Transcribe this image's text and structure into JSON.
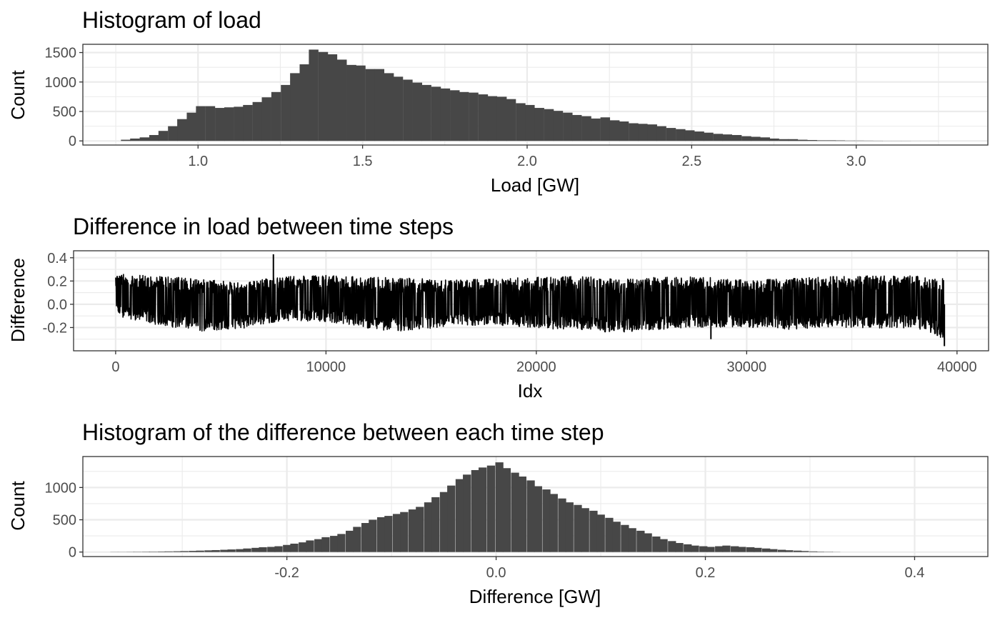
{
  "chart_data": [
    {
      "type": "bar",
      "title": "Histogram of load",
      "xlabel": "Load [GW]",
      "ylabel": "Count",
      "xlim": [
        0.65,
        3.4
      ],
      "ylim": [
        -70,
        1640
      ],
      "xticks": [
        "1.0",
        "1.5",
        "2.0",
        "2.5",
        "3.0"
      ],
      "xtick_values": [
        1.0,
        1.5,
        2.0,
        2.5,
        3.0
      ],
      "yticks": [
        "0",
        "500",
        "1000",
        "1500"
      ],
      "ytick_values": [
        0,
        500,
        1000,
        1500
      ],
      "grid": true,
      "bin_width": 0.0286,
      "bin_centers": [
        0.78,
        0.808,
        0.837,
        0.866,
        0.894,
        0.923,
        0.951,
        0.98,
        1.008,
        1.037,
        1.066,
        1.094,
        1.123,
        1.151,
        1.18,
        1.208,
        1.237,
        1.266,
        1.294,
        1.323,
        1.351,
        1.38,
        1.408,
        1.437,
        1.466,
        1.494,
        1.523,
        1.551,
        1.58,
        1.608,
        1.637,
        1.666,
        1.694,
        1.723,
        1.751,
        1.78,
        1.808,
        1.837,
        1.866,
        1.894,
        1.923,
        1.951,
        1.98,
        2.008,
        2.037,
        2.066,
        2.094,
        2.123,
        2.151,
        2.18,
        2.208,
        2.237,
        2.266,
        2.294,
        2.323,
        2.351,
        2.38,
        2.408,
        2.437,
        2.466,
        2.494,
        2.523,
        2.551,
        2.58,
        2.608,
        2.637,
        2.666,
        2.694,
        2.723,
        2.751,
        2.78,
        2.808,
        2.837,
        2.866,
        2.894,
        2.923,
        2.951,
        2.98,
        3.008,
        3.037,
        3.066,
        3.094,
        3.123,
        3.151,
        3.18,
        3.208,
        3.237
      ],
      "values": [
        20,
        40,
        60,
        100,
        170,
        250,
        370,
        480,
        590,
        590,
        560,
        570,
        580,
        610,
        660,
        740,
        830,
        950,
        1150,
        1300,
        1550,
        1510,
        1470,
        1380,
        1290,
        1280,
        1220,
        1220,
        1150,
        1090,
        1040,
        990,
        950,
        920,
        890,
        860,
        830,
        820,
        790,
        760,
        750,
        710,
        640,
        610,
        560,
        540,
        510,
        480,
        440,
        420,
        380,
        400,
        350,
        330,
        300,
        290,
        280,
        250,
        220,
        200,
        180,
        160,
        140,
        120,
        110,
        100,
        80,
        70,
        60,
        40,
        30,
        30,
        20,
        15,
        10,
        10,
        8,
        5,
        5,
        4,
        3,
        2,
        2,
        2,
        1,
        1,
        1
      ]
    },
    {
      "type": "line",
      "title": "Difference in load between time steps",
      "xlabel": "Idx",
      "ylabel": "Difference",
      "xlim": [
        -2000,
        41500
      ],
      "ylim": [
        -0.4,
        0.46
      ],
      "xticks": [
        "0",
        "10000",
        "20000",
        "30000",
        "40000"
      ],
      "xtick_values": [
        0,
        10000,
        20000,
        30000,
        40000
      ],
      "yticks": [
        "-0.2",
        "0.0",
        "0.2",
        "0.4"
      ],
      "ytick_values": [
        -0.2,
        0.0,
        0.2,
        0.4
      ],
      "grid": true,
      "n_points": 39400,
      "envelope_x": [
        0,
        2000,
        4000,
        6000,
        8000,
        10000,
        12000,
        14000,
        16000,
        18000,
        20000,
        22000,
        24000,
        26000,
        28000,
        30000,
        32000,
        34000,
        36000,
        38000,
        39400
      ],
      "envelope_upper": [
        0.28,
        0.27,
        0.24,
        0.21,
        0.26,
        0.27,
        0.26,
        0.25,
        0.23,
        0.24,
        0.26,
        0.27,
        0.24,
        0.26,
        0.26,
        0.23,
        0.25,
        0.27,
        0.27,
        0.27,
        0.25
      ],
      "envelope_lower": [
        -0.12,
        -0.2,
        -0.26,
        -0.23,
        -0.16,
        -0.17,
        -0.24,
        -0.26,
        -0.22,
        -0.2,
        -0.23,
        -0.25,
        -0.27,
        -0.24,
        -0.22,
        -0.22,
        -0.24,
        -0.22,
        -0.23,
        -0.23,
        -0.33
      ],
      "spikes": [
        {
          "x": 7500,
          "y": 0.43
        },
        {
          "x": 39400,
          "y": -0.36
        },
        {
          "x": 28300,
          "y": -0.3
        }
      ]
    },
    {
      "type": "bar",
      "title": "Histogram of the difference between each time step",
      "xlabel": "Difference [GW]",
      "ylabel": "Count",
      "xlim": [
        -0.395,
        0.47
      ],
      "ylim": [
        -70,
        1480
      ],
      "xticks": [
        "-0.2",
        "0.0",
        "0.2",
        "0.4"
      ],
      "xtick_values": [
        -0.2,
        0.0,
        0.2,
        0.4
      ],
      "yticks": [
        "0",
        "500",
        "1000"
      ],
      "ytick_values": [
        0,
        500,
        1000
      ],
      "grid": true,
      "bin_width": 0.0075,
      "bin_centers": [
        -0.365,
        -0.358,
        -0.35,
        -0.343,
        -0.335,
        -0.328,
        -0.32,
        -0.313,
        -0.305,
        -0.298,
        -0.29,
        -0.283,
        -0.275,
        -0.268,
        -0.26,
        -0.253,
        -0.245,
        -0.238,
        -0.23,
        -0.223,
        -0.215,
        -0.208,
        -0.2,
        -0.193,
        -0.185,
        -0.178,
        -0.17,
        -0.163,
        -0.155,
        -0.148,
        -0.14,
        -0.133,
        -0.125,
        -0.118,
        -0.11,
        -0.103,
        -0.095,
        -0.088,
        -0.08,
        -0.073,
        -0.065,
        -0.058,
        -0.05,
        -0.043,
        -0.035,
        -0.028,
        -0.02,
        -0.013,
        -0.005,
        0.003,
        0.01,
        0.018,
        0.025,
        0.033,
        0.04,
        0.048,
        0.055,
        0.063,
        0.07,
        0.078,
        0.085,
        0.093,
        0.1,
        0.108,
        0.115,
        0.123,
        0.13,
        0.138,
        0.145,
        0.153,
        0.16,
        0.168,
        0.175,
        0.183,
        0.19,
        0.198,
        0.205,
        0.213,
        0.22,
        0.228,
        0.235,
        0.243,
        0.25,
        0.258,
        0.265,
        0.273,
        0.28,
        0.288,
        0.295,
        0.303,
        0.31,
        0.318,
        0.325
      ],
      "values": [
        2,
        2,
        3,
        4,
        5,
        6,
        8,
        10,
        12,
        15,
        18,
        22,
        26,
        30,
        35,
        40,
        45,
        55,
        65,
        75,
        80,
        90,
        110,
        130,
        150,
        180,
        200,
        230,
        250,
        280,
        330,
        390,
        450,
        500,
        540,
        560,
        590,
        620,
        660,
        700,
        770,
        850,
        930,
        1030,
        1130,
        1200,
        1270,
        1310,
        1340,
        1390,
        1300,
        1230,
        1170,
        1110,
        1020,
        970,
        900,
        830,
        770,
        730,
        680,
        640,
        580,
        530,
        470,
        420,
        370,
        330,
        290,
        240,
        200,
        170,
        140,
        120,
        100,
        90,
        80,
        90,
        100,
        90,
        80,
        75,
        65,
        55,
        45,
        35,
        28,
        22,
        16,
        10,
        6,
        4,
        2
      ]
    }
  ]
}
